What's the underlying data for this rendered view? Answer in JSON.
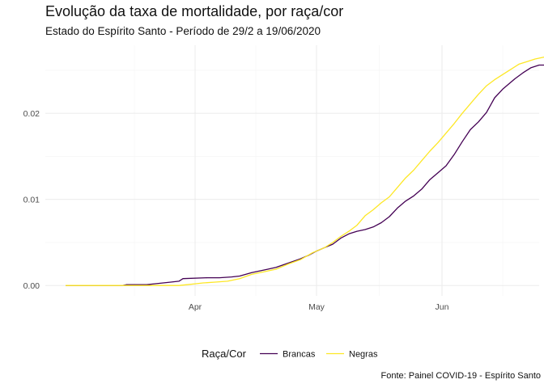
{
  "chart_data": {
    "type": "line",
    "title": "Evolução da taxa de mortalidade, por raça/cor",
    "subtitle": "Estado do Espírito Santo - Período de 29/2 a 19/06/2020",
    "caption": "Fonte: Painel COVID-19 - Espírito Santo",
    "xlabel": "",
    "ylabel": "",
    "x_ticks": [
      {
        "date": "2020-04-01",
        "label": "Apr"
      },
      {
        "date": "2020-05-01",
        "label": "May"
      },
      {
        "date": "2020-06-01",
        "label": "Jun"
      }
    ],
    "y_ticks": [
      {
        "value": 0.0,
        "label": "0.00"
      },
      {
        "value": 0.01,
        "label": "0.01"
      },
      {
        "value": 0.02,
        "label": "0.02"
      }
    ],
    "xlim": [
      "2020-02-24",
      "2020-06-25"
    ],
    "ylim": [
      -0.0012,
      0.0279
    ],
    "grid": true,
    "legend": {
      "title": "Raça/Cor",
      "position": "bottom"
    },
    "series": [
      {
        "name": "Brancas",
        "color": "#440154",
        "points": [
          [
            "2020-02-29",
            0.0
          ],
          [
            "2020-03-14",
            0.0
          ],
          [
            "2020-03-15",
            0.0001
          ],
          [
            "2020-03-20",
            0.0001
          ],
          [
            "2020-03-22",
            0.0002
          ],
          [
            "2020-03-26",
            0.0004
          ],
          [
            "2020-03-28",
            0.0005
          ],
          [
            "2020-03-29",
            0.0008
          ],
          [
            "2020-04-04",
            0.0009
          ],
          [
            "2020-04-07",
            0.0009
          ],
          [
            "2020-04-10",
            0.001
          ],
          [
            "2020-04-12",
            0.0011
          ],
          [
            "2020-04-15",
            0.0015
          ],
          [
            "2020-04-17",
            0.0017
          ],
          [
            "2020-04-19",
            0.0019
          ],
          [
            "2020-04-21",
            0.0021
          ],
          [
            "2020-04-24",
            0.0026
          ],
          [
            "2020-04-27",
            0.0031
          ],
          [
            "2020-04-29",
            0.0035
          ],
          [
            "2020-05-01",
            0.004
          ],
          [
            "2020-05-03",
            0.0044
          ],
          [
            "2020-05-05",
            0.0048
          ],
          [
            "2020-05-07",
            0.0055
          ],
          [
            "2020-05-09",
            0.006
          ],
          [
            "2020-05-11",
            0.0063
          ],
          [
            "2020-05-13",
            0.0065
          ],
          [
            "2020-05-15",
            0.0068
          ],
          [
            "2020-05-17",
            0.0073
          ],
          [
            "2020-05-19",
            0.008
          ],
          [
            "2020-05-21",
            0.009
          ],
          [
            "2020-05-23",
            0.0098
          ],
          [
            "2020-05-25",
            0.0104
          ],
          [
            "2020-05-27",
            0.0112
          ],
          [
            "2020-05-29",
            0.0123
          ],
          [
            "2020-05-31",
            0.0131
          ],
          [
            "2020-06-02",
            0.0139
          ],
          [
            "2020-06-04",
            0.0152
          ],
          [
            "2020-06-06",
            0.0167
          ],
          [
            "2020-06-08",
            0.0181
          ],
          [
            "2020-06-10",
            0.019
          ],
          [
            "2020-06-12",
            0.0201
          ],
          [
            "2020-06-14",
            0.0218
          ],
          [
            "2020-06-16",
            0.0228
          ],
          [
            "2020-06-18",
            0.0236
          ],
          [
            "2020-06-19",
            0.024
          ],
          [
            "2020-06-21",
            0.0247
          ],
          [
            "2020-06-23",
            0.0253
          ],
          [
            "2020-06-25",
            0.0256
          ],
          [
            "2020-06-27",
            0.0256
          ]
        ]
      },
      {
        "name": "Negras",
        "color": "#FDE725",
        "points": [
          [
            "2020-02-29",
            0.0
          ],
          [
            "2020-03-28",
            0.0
          ],
          [
            "2020-03-30",
            0.0001
          ],
          [
            "2020-04-01",
            0.0002
          ],
          [
            "2020-04-03",
            0.0003
          ],
          [
            "2020-04-06",
            0.0004
          ],
          [
            "2020-04-09",
            0.0005
          ],
          [
            "2020-04-12",
            0.0008
          ],
          [
            "2020-04-15",
            0.0013
          ],
          [
            "2020-04-18",
            0.0016
          ],
          [
            "2020-04-21",
            0.0019
          ],
          [
            "2020-04-24",
            0.0025
          ],
          [
            "2020-04-27",
            0.003
          ],
          [
            "2020-04-30",
            0.0038
          ],
          [
            "2020-05-03",
            0.0044
          ],
          [
            "2020-05-05",
            0.005
          ],
          [
            "2020-05-07",
            0.0057
          ],
          [
            "2020-05-09",
            0.0063
          ],
          [
            "2020-05-11",
            0.007
          ],
          [
            "2020-05-13",
            0.0081
          ],
          [
            "2020-05-15",
            0.0088
          ],
          [
            "2020-05-17",
            0.0096
          ],
          [
            "2020-05-19",
            0.0103
          ],
          [
            "2020-05-21",
            0.0114
          ],
          [
            "2020-05-23",
            0.0125
          ],
          [
            "2020-05-25",
            0.0134
          ],
          [
            "2020-05-27",
            0.0145
          ],
          [
            "2020-05-29",
            0.0156
          ],
          [
            "2020-05-31",
            0.0166
          ],
          [
            "2020-06-02",
            0.0177
          ],
          [
            "2020-06-04",
            0.0188
          ],
          [
            "2020-06-06",
            0.02
          ],
          [
            "2020-06-08",
            0.0211
          ],
          [
            "2020-06-10",
            0.0222
          ],
          [
            "2020-06-12",
            0.0232
          ],
          [
            "2020-06-14",
            0.0239
          ],
          [
            "2020-06-16",
            0.0245
          ],
          [
            "2020-06-18",
            0.0251
          ],
          [
            "2020-06-20",
            0.0257
          ],
          [
            "2020-06-22",
            0.026
          ],
          [
            "2020-06-24",
            0.0263
          ],
          [
            "2020-06-26",
            0.0265
          ],
          [
            "2020-06-28",
            0.0267
          ]
        ]
      }
    ]
  }
}
